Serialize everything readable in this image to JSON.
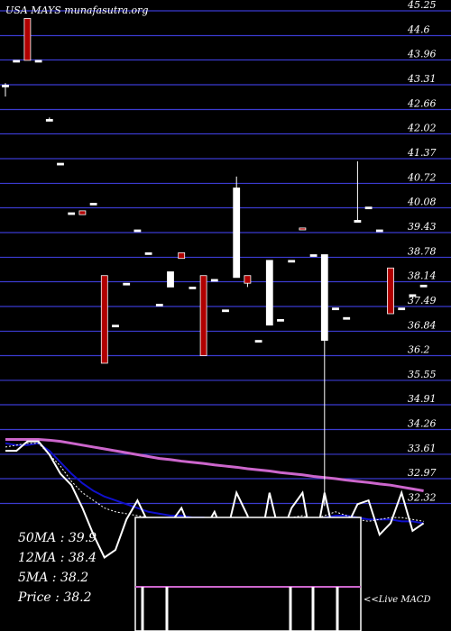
{
  "header": {
    "title": "USA MAYS munafasutra.org"
  },
  "chart_data": {
    "type": "candlestick",
    "ylim": [
      32.0,
      45.25
    ],
    "y_ticks": [
      "45.25",
      "44.6",
      "43.96",
      "43.31",
      "42.66",
      "42.02",
      "41.37",
      "40.72",
      "40.08",
      "39.43",
      "38.78",
      "38.14",
      "37.49",
      "36.84",
      "36.2",
      "35.55",
      "34.91",
      "34.26",
      "33.61",
      "32.97",
      "32.32"
    ],
    "grid": "horizontal",
    "colors": {
      "up": "#ffffff",
      "down": "#b00000",
      "ma50": "#cc66cc",
      "ma12": "#1010cc",
      "ma5": "#ffffff",
      "price": "#ffffff",
      "grid": "#3b3bcf"
    },
    "candles": [
      {
        "o": 43.3,
        "c": 43.3,
        "h": 43.35,
        "l": 43.0
      },
      {
        "o": 43.95,
        "c": 43.95,
        "h": 43.95,
        "l": 43.95
      },
      {
        "o": 45.05,
        "c": 43.95,
        "h": 45.05,
        "l": 43.95
      },
      {
        "o": 43.95,
        "c": 43.95,
        "h": 43.95,
        "l": 43.95
      },
      {
        "o": 42.4,
        "c": 42.4,
        "h": 42.45,
        "l": 42.35
      },
      {
        "o": 41.25,
        "c": 41.25,
        "h": 41.25,
        "l": 41.25
      },
      {
        "o": 39.95,
        "c": 39.95,
        "h": 39.95,
        "l": 39.95
      },
      {
        "o": 40.0,
        "c": 39.9,
        "h": 40.0,
        "l": 39.9
      },
      {
        "o": 40.2,
        "c": 40.2,
        "h": 40.2,
        "l": 40.2
      },
      {
        "o": 38.3,
        "c": 36.0,
        "h": 38.3,
        "l": 36.0
      },
      {
        "o": 37.0,
        "c": 37.0,
        "h": 37.0,
        "l": 37.0
      },
      {
        "o": 38.1,
        "c": 38.1,
        "h": 38.1,
        "l": 38.1
      },
      {
        "o": 39.5,
        "c": 39.5,
        "h": 39.5,
        "l": 39.5
      },
      {
        "o": 38.9,
        "c": 38.9,
        "h": 38.9,
        "l": 38.9
      },
      {
        "o": 37.55,
        "c": 37.55,
        "h": 37.55,
        "l": 37.55
      },
      {
        "o": 38.0,
        "c": 38.4,
        "h": 38.4,
        "l": 38.0
      },
      {
        "o": 38.9,
        "c": 38.75,
        "h": 38.9,
        "l": 38.75
      },
      {
        "o": 38.0,
        "c": 38.0,
        "h": 38.0,
        "l": 38.0
      },
      {
        "o": 38.3,
        "c": 36.2,
        "h": 38.3,
        "l": 36.2
      },
      {
        "o": 38.2,
        "c": 38.2,
        "h": 38.2,
        "l": 38.2
      },
      {
        "o": 37.4,
        "c": 37.4,
        "h": 37.4,
        "l": 37.4
      },
      {
        "o": 38.25,
        "c": 40.6,
        "h": 40.9,
        "l": 38.25
      },
      {
        "o": 38.3,
        "c": 38.1,
        "h": 38.3,
        "l": 38.0
      },
      {
        "o": 36.6,
        "c": 36.6,
        "h": 36.6,
        "l": 36.6
      },
      {
        "o": 37.0,
        "c": 38.7,
        "h": 38.7,
        "l": 37.0
      },
      {
        "o": 37.15,
        "c": 37.15,
        "h": 37.15,
        "l": 37.15
      },
      {
        "o": 38.7,
        "c": 38.7,
        "h": 38.7,
        "l": 38.7
      },
      {
        "o": 39.55,
        "c": 39.5,
        "h": 39.55,
        "l": 39.5
      },
      {
        "o": 38.85,
        "c": 38.85,
        "h": 38.85,
        "l": 38.85
      },
      {
        "o": 36.6,
        "c": 38.85,
        "h": 38.85,
        "l": 32.25
      },
      {
        "o": 37.45,
        "c": 37.45,
        "h": 37.45,
        "l": 37.45
      },
      {
        "o": 37.2,
        "c": 37.2,
        "h": 37.2,
        "l": 37.2
      },
      {
        "o": 39.7,
        "c": 39.75,
        "h": 41.3,
        "l": 39.7
      },
      {
        "o": 40.1,
        "c": 40.1,
        "h": 40.1,
        "l": 40.1
      },
      {
        "o": 39.5,
        "c": 39.5,
        "h": 39.5,
        "l": 39.5
      },
      {
        "o": 38.5,
        "c": 37.3,
        "h": 38.5,
        "l": 37.3
      },
      {
        "o": 37.45,
        "c": 37.45,
        "h": 37.45,
        "l": 37.45
      },
      {
        "o": 37.8,
        "c": 37.8,
        "h": 37.8,
        "l": 37.8
      },
      {
        "o": 38.05,
        "c": 38.05,
        "h": 38.05,
        "l": 38.05
      }
    ],
    "ma50": [
      34.0,
      34.0,
      34.0,
      34.0,
      33.98,
      33.95,
      33.9,
      33.85,
      33.8,
      33.75,
      33.7,
      33.65,
      33.6,
      33.55,
      33.5,
      33.47,
      33.43,
      33.4,
      33.37,
      33.33,
      33.3,
      33.27,
      33.23,
      33.2,
      33.17,
      33.13,
      33.1,
      33.07,
      33.03,
      33.0,
      32.97,
      32.93,
      32.9,
      32.87,
      32.83,
      32.8,
      32.75,
      32.7,
      32.65
    ],
    "ma12": [
      33.9,
      33.85,
      33.85,
      33.9,
      33.7,
      33.4,
      33.1,
      32.85,
      32.65,
      32.5,
      32.4,
      32.3,
      32.2,
      32.1,
      32.05,
      32.0,
      32.0,
      31.95,
      31.95,
      31.9,
      31.85,
      31.85,
      31.85,
      31.8,
      31.8,
      31.85,
      31.85,
      31.9,
      31.9,
      31.95,
      32.0,
      32.0,
      31.95,
      31.9,
      31.9,
      31.9,
      31.85,
      31.85,
      31.8
    ],
    "ma5": [
      33.8,
      33.85,
      33.9,
      33.9,
      33.6,
      33.3,
      32.9,
      32.6,
      32.4,
      32.2,
      32.1,
      32.05,
      32.0,
      31.95,
      31.9,
      31.85,
      31.9,
      31.8,
      31.9,
      31.95,
      31.8,
      31.85,
      31.85,
      31.8,
      31.85,
      31.9,
      31.95,
      32.0,
      31.9,
      32.0,
      32.1,
      32.0,
      31.9,
      31.85,
      31.9,
      31.95,
      31.95,
      31.9,
      31.85
    ],
    "price_line": [
      33.7,
      33.7,
      33.95,
      33.95,
      33.6,
      33.1,
      32.8,
      32.2,
      31.5,
      30.9,
      31.1,
      31.9,
      32.4,
      31.8,
      31.3,
      31.8,
      32.2,
      31.5,
      31.6,
      32.1,
      31.4,
      32.6,
      32.0,
      31.0,
      32.6,
      31.4,
      32.2,
      32.6,
      31.0,
      32.6,
      31.3,
      31.7,
      32.3,
      32.4,
      31.5,
      31.8,
      32.6,
      31.6,
      31.8
    ],
    "macd": [
      0.0,
      0.0,
      0.0,
      0.0,
      0.0,
      0.0,
      0.0,
      0.0,
      0.0,
      0.0,
      0.0,
      0.0,
      0.0,
      0.0,
      0.0,
      0.0,
      0.0,
      0.0,
      0.0,
      0.0,
      0.0,
      0.0,
      0.0,
      0.0,
      0.0,
      0.0,
      0.0,
      0.0,
      0.0,
      0.0,
      0.0,
      0.0,
      0.0,
      0.0,
      0.0,
      0.0,
      0.0,
      0.0,
      0.0
    ],
    "macd_label": "<<Live MACD",
    "legend": [
      {
        "label": "50MA",
        "value": "39.9"
      },
      {
        "label": "12MA",
        "value": "38.4"
      },
      {
        "label": "5MA",
        "value": "38.2"
      },
      {
        "label": "Price",
        "value": "38.2"
      }
    ]
  }
}
